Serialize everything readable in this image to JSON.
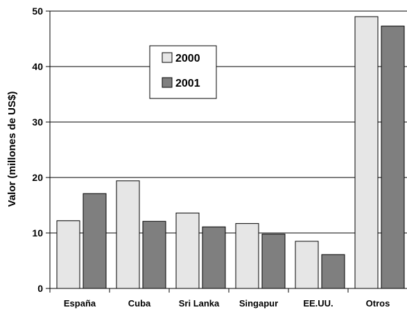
{
  "chart_data": {
    "type": "bar",
    "title": "",
    "xlabel": "",
    "ylabel": "Valor (millones de US$)",
    "ylim": [
      0,
      50
    ],
    "yticks": [
      0,
      10,
      20,
      30,
      40,
      50
    ],
    "grid": true,
    "legend_position": "top-left",
    "categories": [
      "España",
      "Cuba",
      "Sri Lanka",
      "Singapur",
      "EE.UU.",
      "Otros"
    ],
    "series": [
      {
        "name": "2000",
        "color": "#e6e6e6",
        "values": [
          12.2,
          19.4,
          13.6,
          11.7,
          8.5,
          49.0
        ]
      },
      {
        "name": "2001",
        "color": "#7f7f7f",
        "values": [
          17.1,
          12.1,
          11.1,
          9.8,
          6.1,
          47.3
        ]
      }
    ]
  }
}
